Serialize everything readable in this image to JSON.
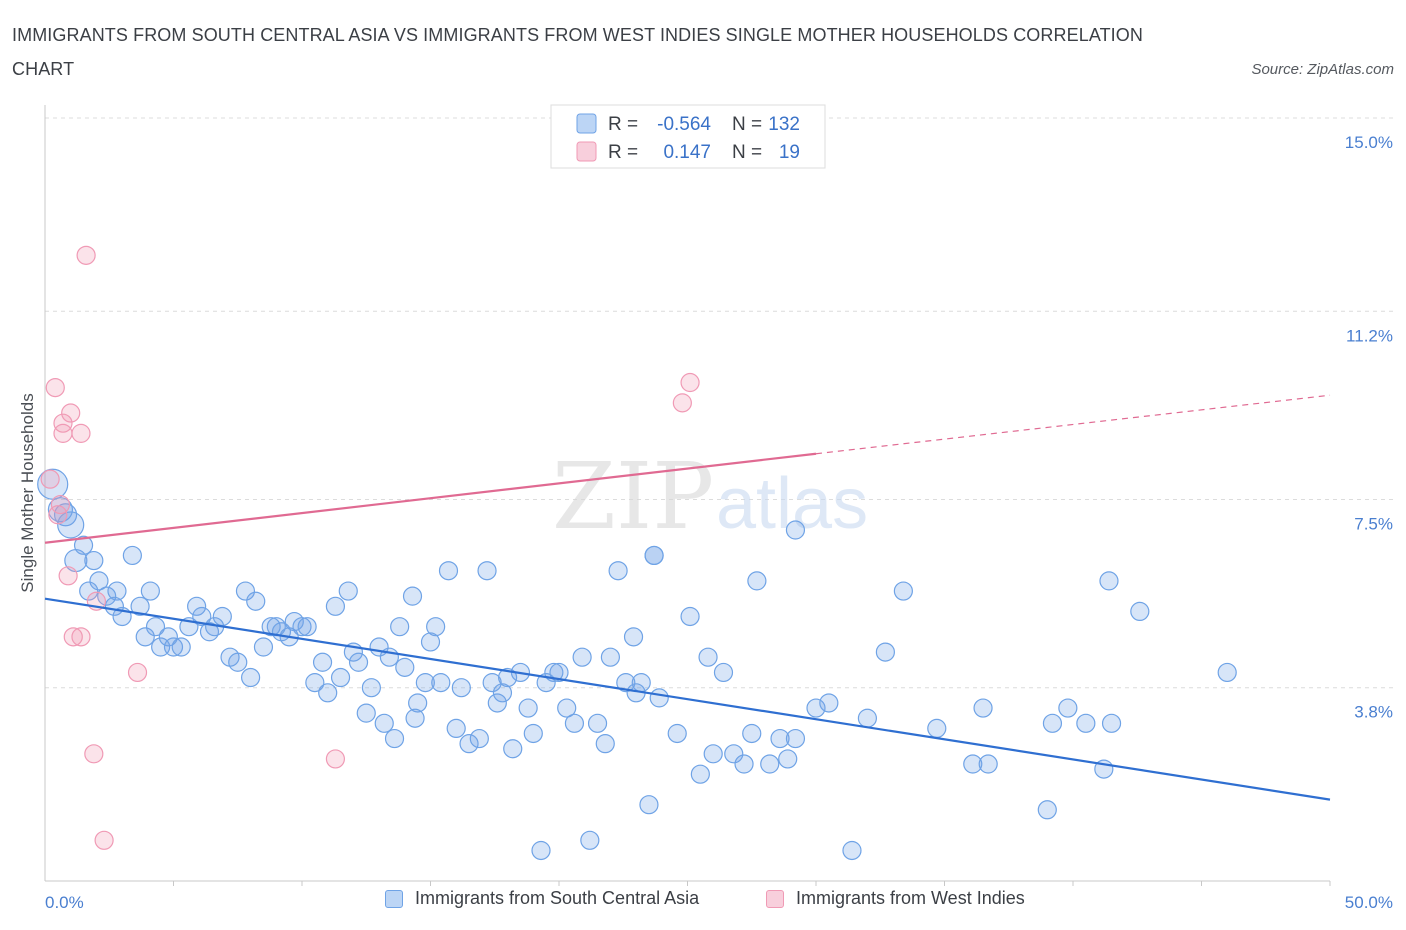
{
  "title": "IMMIGRANTS FROM SOUTH CENTRAL ASIA VS IMMIGRANTS FROM WEST INDIES SINGLE MOTHER HOUSEHOLDS CORRELATION CHART",
  "source": "Source: ZipAtlas.com",
  "watermark": {
    "zip": "ZIP",
    "atlas": "atlas"
  },
  "legend_stats": [
    {
      "r_label": "R =",
      "r_value": "-0.564",
      "n_label": "N =",
      "n_value": "132",
      "color": "#6fa3e6"
    },
    {
      "r_label": "R =",
      "r_value": "0.147",
      "n_label": "N =",
      "n_value": "19",
      "color": "#f09ab5"
    }
  ],
  "chart_data": {
    "type": "scatter",
    "title": "IMMIGRANTS FROM SOUTH CENTRAL ASIA VS IMMIGRANTS FROM WEST INDIES SINGLE MOTHER HOUSEHOLDS CORRELATION CHART",
    "xlabel": "",
    "ylabel": "Single Mother Households",
    "xlim": [
      0,
      50
    ],
    "ylim": [
      0,
      15
    ],
    "x_ticks": [
      "0.0%",
      "50.0%"
    ],
    "y_ticks": [
      {
        "value": 3.8,
        "label": "3.8%"
      },
      {
        "value": 7.5,
        "label": "7.5%"
      },
      {
        "value": 11.2,
        "label": "11.2%"
      },
      {
        "value": 15.0,
        "label": "15.0%"
      }
    ],
    "grid": "horizontal dashed",
    "legend_position": "top-center",
    "series": [
      {
        "name": "Immigrants from South Central Asia",
        "color": "#6fa3e6",
        "trend": {
          "x": [
            0,
            50
          ],
          "y": [
            5.55,
            1.6
          ]
        },
        "points": [
          [
            0.3,
            7.8
          ],
          [
            0.6,
            7.3
          ],
          [
            0.8,
            7.2
          ],
          [
            1.0,
            7.0
          ],
          [
            1.2,
            6.3
          ],
          [
            1.5,
            6.6
          ],
          [
            1.9,
            6.3
          ],
          [
            2.1,
            5.9
          ],
          [
            2.4,
            5.6
          ],
          [
            1.7,
            5.7
          ],
          [
            2.8,
            5.7
          ],
          [
            2.7,
            5.4
          ],
          [
            3.0,
            5.2
          ],
          [
            3.4,
            6.4
          ],
          [
            3.7,
            5.4
          ],
          [
            3.9,
            4.8
          ],
          [
            4.1,
            5.7
          ],
          [
            4.3,
            5.0
          ],
          [
            4.5,
            4.6
          ],
          [
            4.8,
            4.8
          ],
          [
            5.0,
            4.6
          ],
          [
            5.3,
            4.6
          ],
          [
            5.6,
            5.0
          ],
          [
            5.9,
            5.4
          ],
          [
            6.1,
            5.2
          ],
          [
            6.4,
            4.9
          ],
          [
            6.6,
            5.0
          ],
          [
            6.9,
            5.2
          ],
          [
            7.2,
            4.4
          ],
          [
            7.5,
            4.3
          ],
          [
            7.8,
            5.7
          ],
          [
            8.0,
            4.0
          ],
          [
            8.2,
            5.5
          ],
          [
            8.5,
            4.6
          ],
          [
            8.8,
            5.0
          ],
          [
            9.0,
            5.0
          ],
          [
            9.2,
            4.9
          ],
          [
            9.5,
            4.8
          ],
          [
            9.7,
            5.1
          ],
          [
            10.0,
            5.0
          ],
          [
            10.2,
            5.0
          ],
          [
            10.5,
            3.9
          ],
          [
            10.8,
            4.3
          ],
          [
            11.0,
            3.7
          ],
          [
            11.3,
            5.4
          ],
          [
            11.5,
            4.0
          ],
          [
            11.8,
            5.7
          ],
          [
            12.0,
            4.5
          ],
          [
            12.2,
            4.3
          ],
          [
            12.5,
            3.3
          ],
          [
            12.7,
            3.8
          ],
          [
            13.0,
            4.6
          ],
          [
            13.2,
            3.1
          ],
          [
            13.4,
            4.4
          ],
          [
            13.6,
            2.8
          ],
          [
            13.8,
            5.0
          ],
          [
            14.0,
            4.2
          ],
          [
            14.3,
            5.6
          ],
          [
            14.5,
            3.5
          ],
          [
            14.8,
            3.9
          ],
          [
            15.0,
            4.7
          ],
          [
            15.2,
            5.0
          ],
          [
            15.4,
            3.9
          ],
          [
            15.7,
            6.1
          ],
          [
            16.0,
            3.0
          ],
          [
            16.2,
            3.8
          ],
          [
            16.5,
            2.7
          ],
          [
            16.9,
            2.8
          ],
          [
            17.2,
            6.1
          ],
          [
            17.4,
            3.9
          ],
          [
            17.6,
            3.5
          ],
          [
            17.8,
            3.7
          ],
          [
            18.0,
            4.0
          ],
          [
            18.2,
            2.6
          ],
          [
            18.5,
            4.1
          ],
          [
            18.8,
            3.4
          ],
          [
            19.0,
            2.9
          ],
          [
            19.3,
            0.6
          ],
          [
            19.5,
            3.9
          ],
          [
            19.8,
            4.1
          ],
          [
            20.0,
            4.1
          ],
          [
            20.3,
            3.4
          ],
          [
            20.6,
            3.1
          ],
          [
            20.9,
            4.4
          ],
          [
            21.2,
            0.8
          ],
          [
            21.5,
            3.1
          ],
          [
            21.8,
            2.7
          ],
          [
            22.0,
            4.4
          ],
          [
            22.3,
            6.1
          ],
          [
            22.6,
            3.9
          ],
          [
            22.9,
            4.8
          ],
          [
            23.2,
            3.9
          ],
          [
            23.5,
            1.5
          ],
          [
            23.7,
            6.4
          ],
          [
            23.9,
            3.6
          ],
          [
            24.6,
            2.9
          ],
          [
            25.1,
            5.2
          ],
          [
            25.5,
            2.1
          ],
          [
            25.8,
            4.4
          ],
          [
            26.0,
            2.5
          ],
          [
            26.4,
            4.1
          ],
          [
            26.8,
            2.5
          ],
          [
            27.2,
            2.3
          ],
          [
            27.5,
            2.9
          ],
          [
            27.7,
            5.9
          ],
          [
            28.2,
            2.3
          ],
          [
            28.6,
            2.8
          ],
          [
            28.9,
            2.4
          ],
          [
            29.2,
            2.8
          ],
          [
            30.0,
            3.4
          ],
          [
            30.5,
            3.5
          ],
          [
            31.4,
            0.6
          ],
          [
            32.0,
            3.2
          ],
          [
            32.7,
            4.5
          ],
          [
            33.4,
            5.7
          ],
          [
            34.7,
            3.0
          ],
          [
            36.1,
            2.3
          ],
          [
            36.7,
            2.3
          ],
          [
            36.5,
            3.4
          ],
          [
            39.2,
            3.1
          ],
          [
            39.0,
            1.4
          ],
          [
            39.8,
            3.4
          ],
          [
            40.5,
            3.1
          ],
          [
            41.2,
            2.2
          ],
          [
            41.4,
            5.9
          ],
          [
            41.5,
            3.1
          ],
          [
            42.6,
            5.3
          ],
          [
            46.0,
            4.1
          ],
          [
            23.7,
            6.4
          ],
          [
            29.2,
            6.9
          ],
          [
            14.4,
            3.2
          ],
          [
            23.0,
            3.7
          ]
        ]
      },
      {
        "name": "Immigrants from West Indies",
        "color": "#f09ab5",
        "trend": {
          "x": [
            0,
            30,
            50
          ],
          "y": [
            6.65,
            8.4,
            9.55
          ],
          "solid_until_x": 30
        },
        "points": [
          [
            0.2,
            7.9
          ],
          [
            0.4,
            9.7
          ],
          [
            0.6,
            7.4
          ],
          [
            0.7,
            9.0
          ],
          [
            0.7,
            8.8
          ],
          [
            0.9,
            6.0
          ],
          [
            1.0,
            9.2
          ],
          [
            1.1,
            4.8
          ],
          [
            1.4,
            8.8
          ],
          [
            1.4,
            4.8
          ],
          [
            1.6,
            12.3
          ],
          [
            1.9,
            2.5
          ],
          [
            2.0,
            5.5
          ],
          [
            2.3,
            0.8
          ],
          [
            3.6,
            4.1
          ],
          [
            11.3,
            2.4
          ],
          [
            24.8,
            9.4
          ],
          [
            25.1,
            9.8
          ],
          [
            0.5,
            7.2
          ]
        ]
      }
    ]
  },
  "bottom_legend": [
    {
      "label": "Immigrants from South Central Asia",
      "color": "#6fa3e6"
    },
    {
      "label": "Immigrants from West Indies",
      "color": "#f09ab5"
    }
  ]
}
